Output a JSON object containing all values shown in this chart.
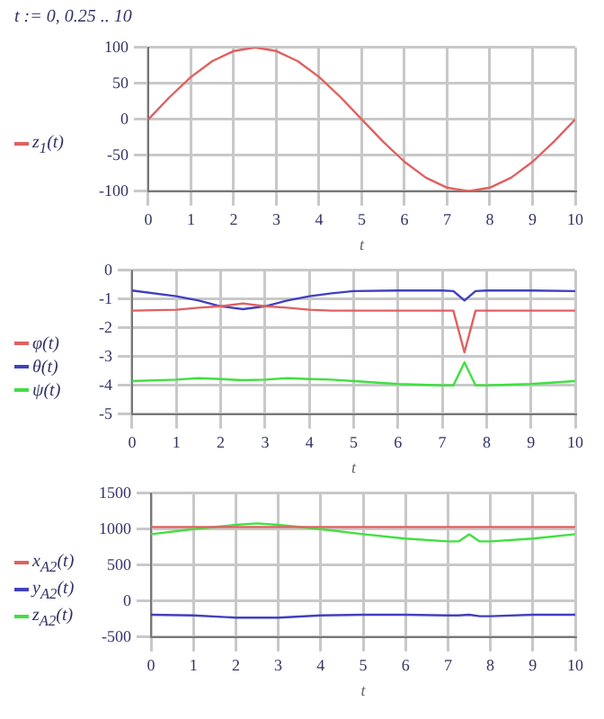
{
  "chart_data": [
    {
      "type": "line",
      "annotations": [
        "t := 0, 0.25 .. 10"
      ],
      "xlabel": "t",
      "x": [
        0,
        0.5,
        1,
        1.5,
        2,
        2.5,
        3,
        3.5,
        4,
        4.5,
        5,
        5.5,
        6,
        6.5,
        7,
        7.5,
        8,
        8.5,
        9,
        9.5,
        10
      ],
      "series": [
        {
          "name": "z$_{1}$(t)",
          "color": "#e06060",
          "values": [
            0,
            31,
            59,
            81,
            95,
            100,
            95,
            81,
            59,
            31,
            0,
            -31,
            -59,
            -81,
            -95,
            -100,
            -95,
            -81,
            -59,
            -31,
            0
          ]
        }
      ],
      "xlim": [
        0,
        10
      ],
      "xticks": [
        0,
        1,
        2,
        3,
        4,
        5,
        6,
        7,
        8,
        9,
        10
      ],
      "ylim": [
        -100,
        100
      ],
      "yticks": [
        -100,
        -50,
        0,
        50,
        100
      ],
      "grid": true,
      "legend": "left",
      "marker": "none",
      "line_style": "solid"
    },
    {
      "type": "line",
      "xlabel": "t",
      "x": [
        0,
        1,
        1.5,
        2,
        2.5,
        3,
        3.5,
        4,
        4.5,
        5,
        6,
        7,
        7.25,
        7.5,
        7.75,
        8,
        9,
        10
      ],
      "series": [
        {
          "name": "φ(t)",
          "color": "#e06060",
          "values": [
            -1.4,
            -1.37,
            -1.3,
            -1.25,
            -1.15,
            -1.25,
            -1.3,
            -1.37,
            -1.4,
            -1.4,
            -1.4,
            -1.4,
            -1.4,
            -2.85,
            -1.4,
            -1.4,
            -1.4,
            -1.4
          ]
        },
        {
          "name": "θ(t)",
          "color": "#4040c0",
          "values": [
            -0.7,
            -0.9,
            -1.05,
            -1.25,
            -1.35,
            -1.25,
            -1.05,
            -0.9,
            -0.8,
            -0.72,
            -0.7,
            -0.7,
            -0.72,
            -1.05,
            -0.72,
            -0.7,
            -0.7,
            -0.72
          ]
        },
        {
          "name": "ψ(t)",
          "color": "#40e040",
          "values": [
            -3.85,
            -3.8,
            -3.75,
            -3.78,
            -3.82,
            -3.8,
            -3.75,
            -3.78,
            -3.8,
            -3.85,
            -3.95,
            -4.0,
            -4.0,
            -3.2,
            -4.0,
            -4.0,
            -3.95,
            -3.85
          ]
        }
      ],
      "xlim": [
        0,
        10
      ],
      "xticks": [
        0,
        1,
        2,
        3,
        4,
        5,
        6,
        7,
        8,
        9,
        10
      ],
      "ylim": [
        -5,
        0
      ],
      "yticks": [
        -5,
        -4,
        -3,
        -2,
        -1,
        0
      ],
      "grid": true,
      "legend": "left",
      "marker": "none",
      "line_style": "solid"
    },
    {
      "type": "line",
      "xlabel": "t",
      "x": [
        0,
        1,
        2,
        2.5,
        3,
        4,
        5,
        6,
        7,
        7.25,
        7.5,
        7.75,
        8,
        9,
        10
      ],
      "series": [
        {
          "name": "x$_{A2}$(t)",
          "color": "#e06060",
          "values": [
            1030,
            1030,
            1030,
            1030,
            1030,
            1030,
            1030,
            1030,
            1030,
            1030,
            1030,
            1030,
            1030,
            1030,
            1030
          ]
        },
        {
          "name": "y$_{A2}$(t)",
          "color": "#4040c0",
          "values": [
            -190,
            -200,
            -230,
            -230,
            -230,
            -200,
            -190,
            -190,
            -200,
            -200,
            -190,
            -210,
            -210,
            -190,
            -190
          ]
        },
        {
          "name": "z$_{A2}$(t)",
          "color": "#40e040",
          "values": [
            930,
            1000,
            1060,
            1080,
            1060,
            1000,
            930,
            870,
            830,
            830,
            930,
            830,
            830,
            870,
            930
          ]
        }
      ],
      "xlim": [
        0,
        10
      ],
      "xticks": [
        0,
        1,
        2,
        3,
        4,
        5,
        6,
        7,
        8,
        9,
        10
      ],
      "ylim": [
        -500,
        1500
      ],
      "yticks": [
        -500,
        0,
        500,
        1000,
        1500
      ],
      "grid": true,
      "legend": "left",
      "marker": "none",
      "line_style": "solid"
    }
  ]
}
